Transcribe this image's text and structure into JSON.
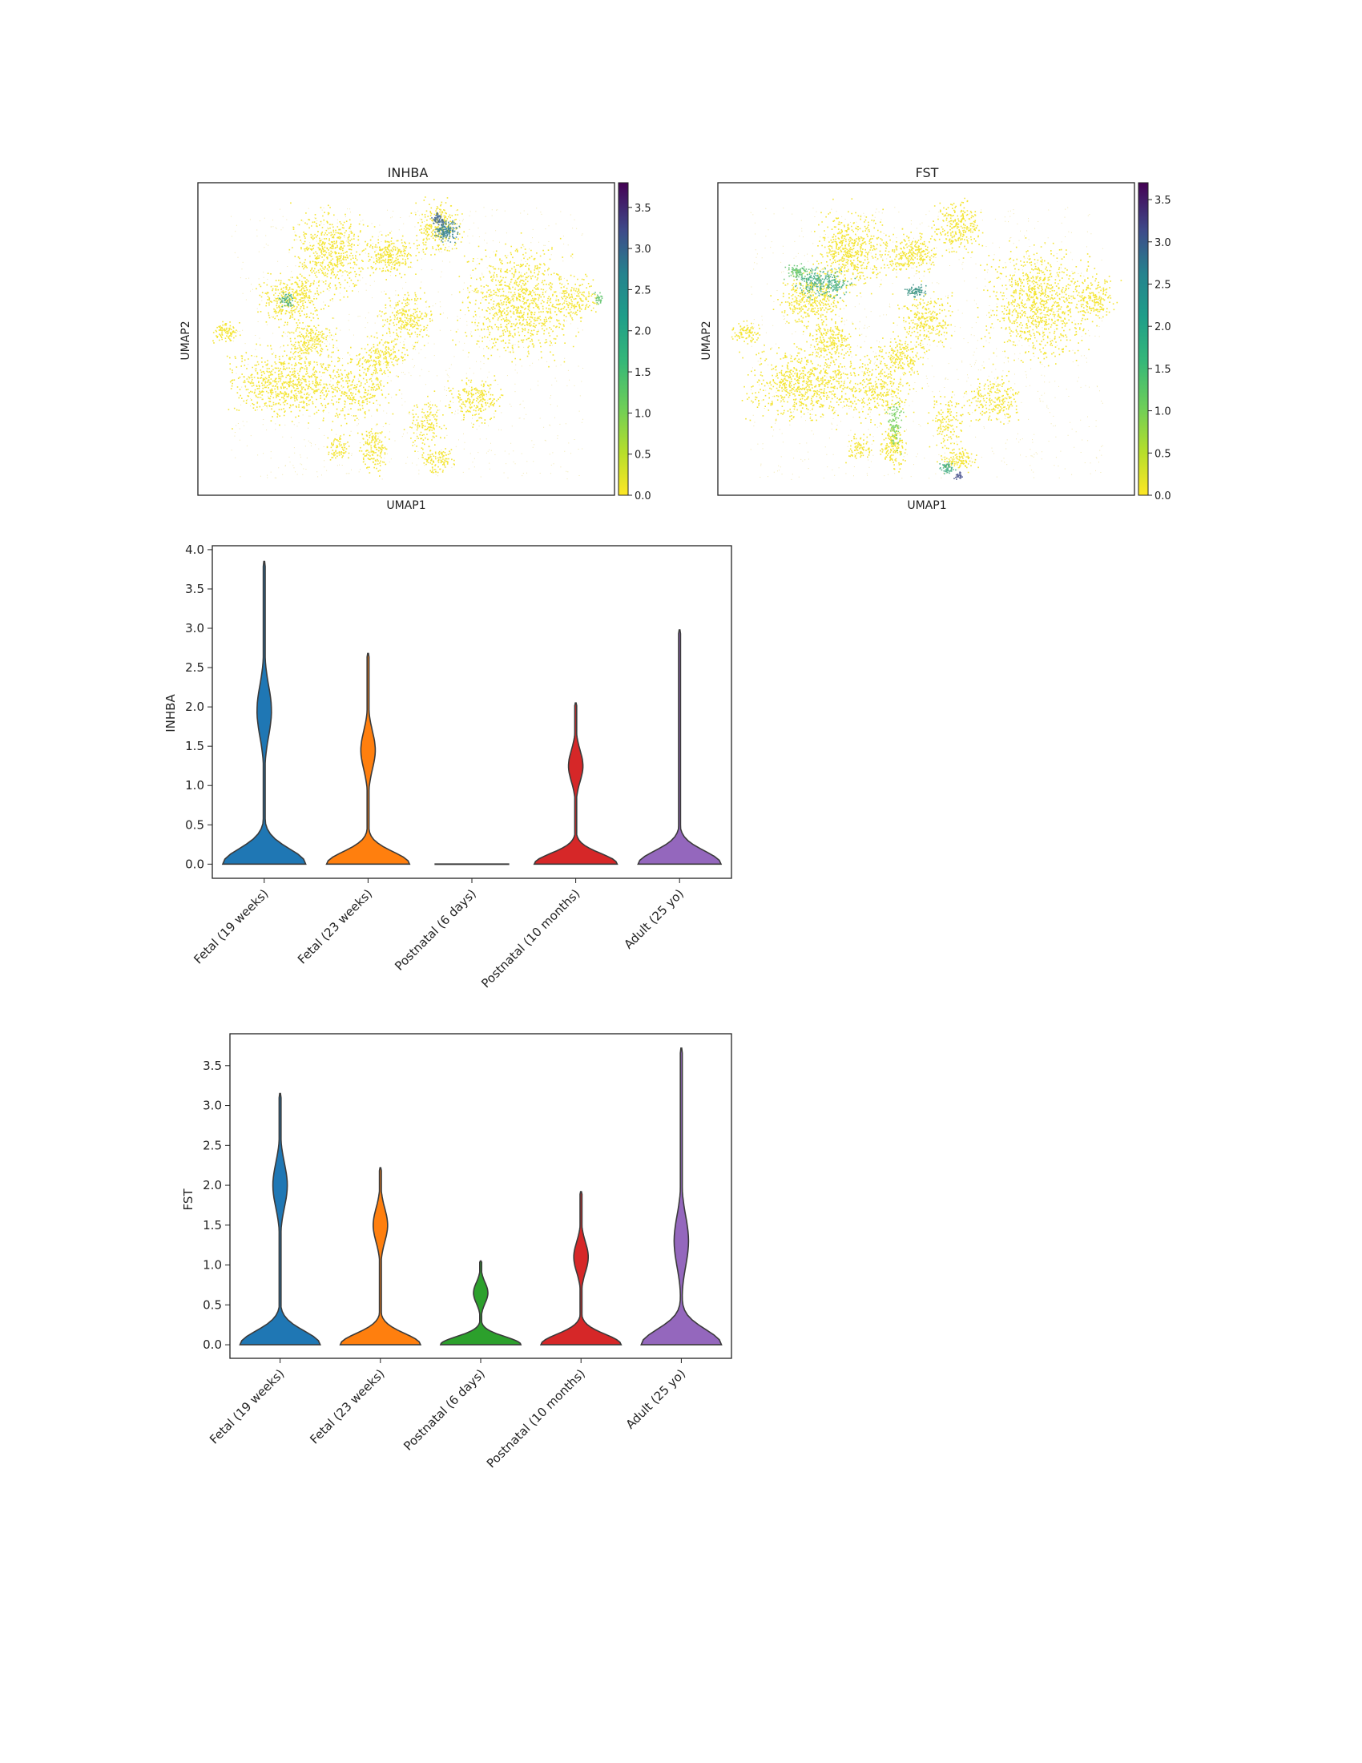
{
  "chart_data": [
    {
      "type": "scatter",
      "title": "INHBA",
      "xlabel": "UMAP1",
      "ylabel": "UMAP2",
      "colorbar": {
        "min": 0.0,
        "max": 3.8,
        "ticks": [
          "0.0",
          "0.5",
          "1.0",
          "1.5",
          "2.0",
          "2.5",
          "3.0",
          "3.5"
        ],
        "colormap": "viridis-reversed"
      }
    },
    {
      "type": "scatter",
      "title": "FST",
      "xlabel": "UMAP1",
      "ylabel": "UMAP2",
      "colorbar": {
        "min": 0.0,
        "max": 3.7,
        "ticks": [
          "0.0",
          "0.5",
          "1.0",
          "1.5",
          "2.0",
          "2.5",
          "3.0",
          "3.5"
        ],
        "colormap": "viridis-reversed"
      }
    },
    {
      "type": "violin",
      "title": "",
      "xlabel": "",
      "ylabel": "INHBA",
      "ylim": [
        -0.18,
        4.05
      ],
      "yticks": [
        "0.0",
        "0.5",
        "1.0",
        "1.5",
        "2.0",
        "2.5",
        "3.0",
        "3.5",
        "4.0"
      ],
      "categories": [
        "Fetal (19 weeks)",
        "Fetal (23 weeks)",
        "Postnatal (6 days)",
        "Postnatal (10 months)",
        "Adult (25 yo)"
      ],
      "colors": [
        "#1f77b4",
        "#ff7f0e",
        "#2ca02c",
        "#d62728",
        "#9467bd"
      ],
      "max_values": [
        3.85,
        2.68,
        0.0,
        2.05,
        2.98
      ],
      "mode_values": [
        0.0,
        0.0,
        0.0,
        0.0,
        0.0
      ],
      "secondary_mode_values": [
        1.95,
        1.45,
        0.0,
        1.25,
        0.0
      ]
    },
    {
      "type": "violin",
      "title": "",
      "xlabel": "",
      "ylabel": "FST",
      "ylim": [
        -0.17,
        3.9
      ],
      "yticks": [
        "0.0",
        "0.5",
        "1.0",
        "1.5",
        "2.0",
        "2.5",
        "3.0",
        "3.5"
      ],
      "categories": [
        "Fetal (19 weeks)",
        "Fetal (23 weeks)",
        "Postnatal (6 days)",
        "Postnatal (10 months)",
        "Adult (25 yo)"
      ],
      "colors": [
        "#1f77b4",
        "#ff7f0e",
        "#2ca02c",
        "#d62728",
        "#9467bd"
      ],
      "max_values": [
        3.15,
        2.22,
        1.05,
        1.92,
        3.72
      ],
      "mode_values": [
        0.0,
        0.0,
        0.0,
        0.0,
        0.0
      ],
      "secondary_mode_values": [
        2.0,
        1.5,
        0.65,
        1.1,
        1.3
      ]
    }
  ]
}
